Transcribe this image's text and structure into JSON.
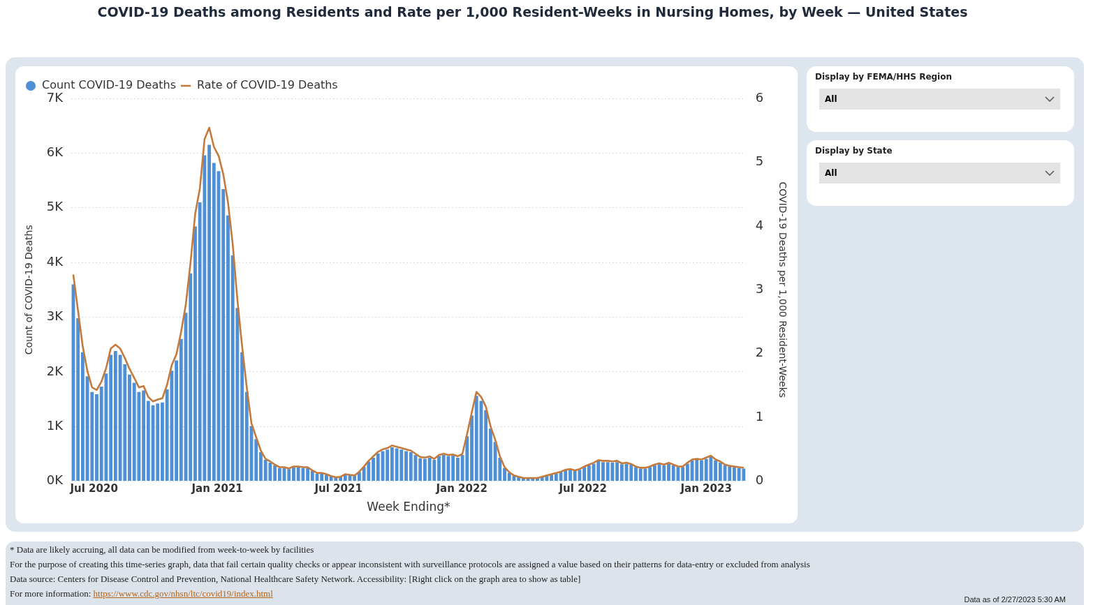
{
  "chart_data": [
    {
      "type": "bar",
      "title": "COVID-19 Deaths among Residents and Rate per 1,000 Resident-Weeks in Nursing Homes, by Week — United States",
      "xlabel": "Week Ending*",
      "ylabel": "Count of COVID-19 Deaths",
      "y2label": "COVID-19 Deaths per 1,000 Resident-Weeks",
      "x": [
        "2020-05-31",
        "2020-06-07",
        "2020-06-14",
        "2020-06-21",
        "2020-06-28",
        "2020-07-05",
        "2020-07-12",
        "2020-07-19",
        "2020-07-26",
        "2020-08-02",
        "2020-08-09",
        "2020-08-16",
        "2020-08-23",
        "2020-08-30",
        "2020-09-06",
        "2020-09-13",
        "2020-09-20",
        "2020-09-27",
        "2020-10-04",
        "2020-10-11",
        "2020-10-18",
        "2020-10-25",
        "2020-11-01",
        "2020-11-08",
        "2020-11-15",
        "2020-11-22",
        "2020-11-29",
        "2020-12-06",
        "2020-12-13",
        "2020-12-20",
        "2020-12-27",
        "2021-01-03",
        "2021-01-10",
        "2021-01-17",
        "2021-01-24",
        "2021-01-31",
        "2021-02-07",
        "2021-02-14",
        "2021-02-21",
        "2021-02-28",
        "2021-03-07",
        "2021-03-14",
        "2021-03-21",
        "2021-03-28",
        "2021-04-04",
        "2021-04-11",
        "2021-04-18",
        "2021-04-25",
        "2021-05-02",
        "2021-05-09",
        "2021-05-16",
        "2021-05-23",
        "2021-05-30",
        "2021-06-06",
        "2021-06-13",
        "2021-06-20",
        "2021-06-27",
        "2021-07-04",
        "2021-07-11",
        "2021-07-18",
        "2021-07-25",
        "2021-08-01",
        "2021-08-08",
        "2021-08-15",
        "2021-08-22",
        "2021-08-29",
        "2021-09-05",
        "2021-09-12",
        "2021-09-19",
        "2021-09-26",
        "2021-10-03",
        "2021-10-10",
        "2021-10-17",
        "2021-10-24",
        "2021-10-31",
        "2021-11-07",
        "2021-11-14",
        "2021-11-21",
        "2021-11-28",
        "2021-12-05",
        "2021-12-12",
        "2021-12-19",
        "2021-12-26",
        "2022-01-02",
        "2022-01-09",
        "2022-01-16",
        "2022-01-23",
        "2022-01-30",
        "2022-02-06",
        "2022-02-13",
        "2022-02-20",
        "2022-02-27",
        "2022-03-06",
        "2022-03-13",
        "2022-03-20",
        "2022-03-27",
        "2022-04-03",
        "2022-04-10",
        "2022-04-17",
        "2022-04-24",
        "2022-05-01",
        "2022-05-08",
        "2022-05-15",
        "2022-05-22",
        "2022-05-29",
        "2022-06-05",
        "2022-06-12",
        "2022-06-19",
        "2022-06-26",
        "2022-07-03",
        "2022-07-10",
        "2022-07-17",
        "2022-07-24",
        "2022-07-31",
        "2022-08-07",
        "2022-08-14",
        "2022-08-21",
        "2022-08-28",
        "2022-09-04",
        "2022-09-11",
        "2022-09-18",
        "2022-09-25",
        "2022-10-02",
        "2022-10-09",
        "2022-10-16",
        "2022-10-23",
        "2022-10-30",
        "2022-11-06",
        "2022-11-13",
        "2022-11-20",
        "2022-11-27",
        "2022-12-04",
        "2022-12-11",
        "2022-12-18",
        "2022-12-25",
        "2023-01-01",
        "2023-01-08",
        "2023-01-15",
        "2023-01-22",
        "2023-01-29",
        "2023-02-05",
        "2023-02-12",
        "2023-02-19",
        "2023-02-26"
      ],
      "series": [
        {
          "name": "Count COVID-19 Deaths",
          "type": "bar",
          "color": "#4e8fd6",
          "values": [
            3600,
            2980,
            2360,
            1920,
            1630,
            1590,
            1730,
            1970,
            2310,
            2380,
            2310,
            2140,
            1950,
            1800,
            1630,
            1660,
            1470,
            1390,
            1420,
            1440,
            1680,
            2020,
            2210,
            2600,
            3080,
            3800,
            4660,
            5100,
            5960,
            6150,
            5820,
            5670,
            5340,
            4860,
            4130,
            3170,
            2360,
            1630,
            1010,
            770,
            530,
            390,
            340,
            290,
            240,
            240,
            220,
            260,
            260,
            240,
            240,
            190,
            140,
            140,
            120,
            90,
            70,
            80,
            120,
            110,
            100,
            170,
            260,
            360,
            430,
            510,
            550,
            580,
            620,
            600,
            580,
            550,
            530,
            480,
            420,
            410,
            430,
            390,
            460,
            480,
            460,
            470,
            430,
            480,
            820,
            1200,
            1560,
            1470,
            1300,
            960,
            720,
            430,
            240,
            150,
            100,
            80,
            60,
            50,
            60,
            60,
            80,
            100,
            120,
            140,
            170,
            200,
            210,
            190,
            210,
            260,
            290,
            320,
            370,
            350,
            350,
            340,
            350,
            310,
            320,
            300,
            260,
            230,
            230,
            260,
            290,
            310,
            290,
            320,
            290,
            260,
            260,
            320,
            380,
            390,
            380,
            410,
            440,
            380,
            340,
            290,
            270,
            260,
            240,
            230
          ]
        },
        {
          "name": "Rate of COVID-19 Deaths",
          "type": "line",
          "axis": "y2",
          "color": "#c47a3c",
          "values": [
            3.24,
            2.68,
            2.12,
            1.73,
            1.47,
            1.43,
            1.56,
            1.77,
            2.08,
            2.14,
            2.08,
            1.93,
            1.76,
            1.62,
            1.47,
            1.49,
            1.32,
            1.25,
            1.28,
            1.3,
            1.51,
            1.82,
            1.99,
            2.34,
            2.77,
            3.42,
            4.19,
            4.59,
            5.36,
            5.54,
            5.24,
            5.1,
            4.81,
            4.37,
            3.72,
            2.85,
            2.12,
            1.47,
            0.91,
            0.69,
            0.48,
            0.35,
            0.31,
            0.26,
            0.22,
            0.22,
            0.2,
            0.23,
            0.23,
            0.22,
            0.22,
            0.17,
            0.13,
            0.13,
            0.11,
            0.08,
            0.06,
            0.07,
            0.11,
            0.1,
            0.09,
            0.15,
            0.23,
            0.32,
            0.39,
            0.46,
            0.5,
            0.52,
            0.56,
            0.54,
            0.52,
            0.5,
            0.48,
            0.43,
            0.38,
            0.37,
            0.39,
            0.35,
            0.41,
            0.43,
            0.41,
            0.42,
            0.39,
            0.43,
            0.74,
            1.08,
            1.4,
            1.32,
            1.17,
            0.86,
            0.65,
            0.39,
            0.22,
            0.14,
            0.09,
            0.07,
            0.05,
            0.05,
            0.05,
            0.05,
            0.07,
            0.09,
            0.11,
            0.13,
            0.15,
            0.18,
            0.19,
            0.17,
            0.19,
            0.23,
            0.26,
            0.29,
            0.33,
            0.32,
            0.32,
            0.31,
            0.32,
            0.28,
            0.29,
            0.27,
            0.23,
            0.21,
            0.21,
            0.23,
            0.26,
            0.28,
            0.26,
            0.29,
            0.26,
            0.23,
            0.23,
            0.29,
            0.34,
            0.35,
            0.34,
            0.37,
            0.4,
            0.34,
            0.31,
            0.26,
            0.24,
            0.23,
            0.22,
            0.21
          ]
        }
      ],
      "xlim": [
        "2020-05-28",
        "2023-03-01"
      ],
      "xticks": [
        {
          "value": "2020-07-01",
          "label": "Jul 2020"
        },
        {
          "value": "2021-01-01",
          "label": "Jan 2021"
        },
        {
          "value": "2021-07-01",
          "label": "Jul 2021"
        },
        {
          "value": "2022-01-01",
          "label": "Jan 2022"
        },
        {
          "value": "2022-07-01",
          "label": "Jul 2022"
        },
        {
          "value": "2023-01-01",
          "label": "Jan 2023"
        }
      ],
      "ylim": [
        0,
        7000
      ],
      "yticks": [
        {
          "value": 0,
          "label": "0K"
        },
        {
          "value": 1000,
          "label": "1K"
        },
        {
          "value": 2000,
          "label": "2K"
        },
        {
          "value": 3000,
          "label": "3K"
        },
        {
          "value": 4000,
          "label": "4K"
        },
        {
          "value": 5000,
          "label": "5K"
        },
        {
          "value": 6000,
          "label": "6K"
        },
        {
          "value": 7000,
          "label": "7K"
        }
      ],
      "y2lim": [
        0,
        6
      ],
      "y2ticks": [
        0,
        1,
        2,
        3,
        4,
        5,
        6
      ],
      "grid": "y",
      "legend": "top left",
      "annotations": [
        "* Data are likely accruing, all data can be modified from week-to-week by facilities",
        "For the purpose of creating this time-series graph, data that fail certain quality checks or appear inconsistent with surveillance protocols are assigned a value based on their patterns for data-entry or excluded from analysis",
        "Data source: Centers for Disease Control and Prevention, National Healthcare Safety Network. Accessibility: [Right click on the graph area to show as table]",
        "For more information: https://www.cdc.gov/nhsn/ltc/covid19/index.html",
        "Data as of 2/27/2023 5:30 AM"
      ]
    },
    {
      "type": "other",
      "annotations": [
        "Display by FEMA/HHS Region",
        "All",
        "Display by State",
        "All"
      ]
    }
  ]
}
